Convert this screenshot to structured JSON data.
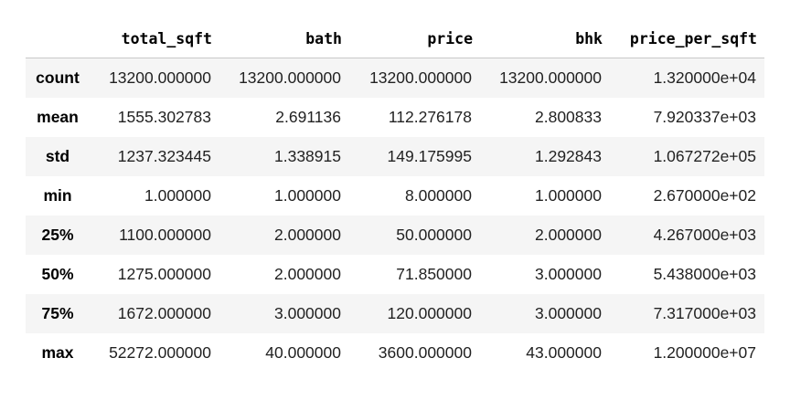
{
  "table": {
    "index_header": "",
    "columns": [
      "total_sqft",
      "bath",
      "price",
      "bhk",
      "price_per_sqft"
    ],
    "rows": [
      {
        "label": "count",
        "values": [
          "13200.000000",
          "13200.000000",
          "13200.000000",
          "13200.000000",
          "1.320000e+04"
        ]
      },
      {
        "label": "mean",
        "values": [
          "1555.302783",
          "2.691136",
          "112.276178",
          "2.800833",
          "7.920337e+03"
        ]
      },
      {
        "label": "std",
        "values": [
          "1237.323445",
          "1.338915",
          "149.175995",
          "1.292843",
          "1.067272e+05"
        ]
      },
      {
        "label": "min",
        "values": [
          "1.000000",
          "1.000000",
          "8.000000",
          "1.000000",
          "2.670000e+02"
        ]
      },
      {
        "label": "25%",
        "values": [
          "1100.000000",
          "2.000000",
          "50.000000",
          "2.000000",
          "4.267000e+03"
        ]
      },
      {
        "label": "50%",
        "values": [
          "1275.000000",
          "2.000000",
          "71.850000",
          "3.000000",
          "5.438000e+03"
        ]
      },
      {
        "label": "75%",
        "values": [
          "1672.000000",
          "3.000000",
          "120.000000",
          "3.000000",
          "7.317000e+03"
        ]
      },
      {
        "label": "max",
        "values": [
          "52272.000000",
          "40.000000",
          "3600.000000",
          "43.000000",
          "1.200000e+07"
        ]
      }
    ]
  },
  "colors": {
    "stripe": "#f5f5f5",
    "header_rule": "#c8c8c8",
    "background": "#ffffff"
  }
}
